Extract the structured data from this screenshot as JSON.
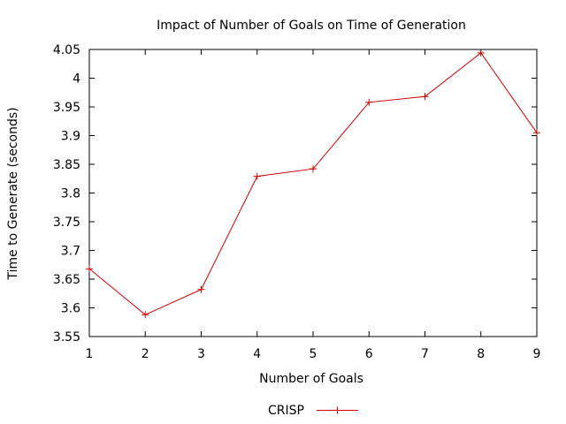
{
  "chart_data": {
    "type": "line",
    "title": "Impact of Number of Goals on Time of Generation",
    "xlabel": "Number of Goals",
    "ylabel": "Time to Generate (seconds)",
    "xlim": [
      1,
      9
    ],
    "ylim": [
      3.55,
      4.05
    ],
    "x_ticks": [
      "1",
      "2",
      "3",
      "4",
      "5",
      "6",
      "7",
      "8",
      "9"
    ],
    "y_ticks": [
      "3.55",
      "3.6",
      "3.65",
      "3.7",
      "3.75",
      "3.8",
      "3.85",
      "3.9",
      "3.95",
      "4",
      "4.05"
    ],
    "grid": false,
    "legend_position": "bottom-center",
    "series": [
      {
        "name": "CRISP",
        "color": "#cc0000",
        "marker": "plus",
        "x": [
          1,
          2,
          3,
          4,
          5,
          6,
          7,
          8,
          9
        ],
        "values": [
          3.668,
          3.588,
          3.632,
          3.829,
          3.842,
          3.958,
          3.968,
          4.044,
          3.905
        ]
      }
    ]
  }
}
